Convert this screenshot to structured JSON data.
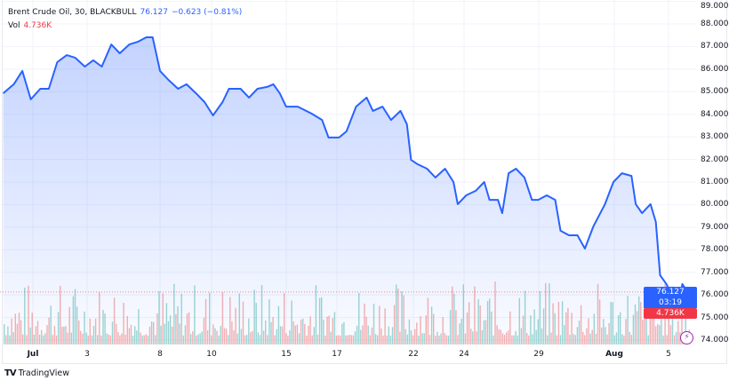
{
  "legend": {
    "symbol": "Brent Crude Oil, 30, BLACKBULL",
    "last": "76.127",
    "change": "−0.623 (−0.81%)",
    "vol_label": "Vol",
    "vol_value": "4.736K"
  },
  "price_tag": {
    "price": "76.127",
    "countdown": "03:19",
    "volume": "4.736K"
  },
  "colors": {
    "line": "#2962ff",
    "up_volume": "#26a69a",
    "down_volume": "#ef5350",
    "price_tag": "#2962ff",
    "volume_tag": "#f23645",
    "alert_icon": "#9c27b0"
  },
  "icons": {
    "alert": "lightning-icon",
    "logo": "tradingview-logo"
  },
  "footer": {
    "brand": "TradingView"
  },
  "chart_data": {
    "type": "area",
    "title": "Brent Crude Oil, 30, BLACKBULL",
    "ylim": [
      74,
      89
    ],
    "yticks": [
      "74.000",
      "75.000",
      "76.000",
      "77.000",
      "78.000",
      "79.000",
      "80.000",
      "81.000",
      "82.000",
      "83.000",
      "84.000",
      "85.000",
      "86.000",
      "87.000",
      "88.000",
      "89.000"
    ],
    "xticks": [
      "Jul",
      "3",
      "8",
      "10",
      "15",
      "17",
      "22",
      "24",
      "29",
      "Aug",
      "5"
    ],
    "grid": true,
    "series": [
      {
        "values": [
          [
            "Jun 27 20:00",
            84.93
          ],
          [
            "Jun 28 06:00",
            85.33
          ],
          [
            "Jun 28 14:00",
            85.92
          ],
          [
            "Jun 28 22:00",
            84.66
          ],
          [
            "Jul 1 07:00",
            85.13
          ],
          [
            "Jul 1 15:00",
            85.13
          ],
          [
            "Jul 1 23:00",
            86.31
          ],
          [
            "Jul 2 08:00",
            86.62
          ],
          [
            "Jul 2 16:00",
            86.5
          ],
          [
            "Jul 3 01:00",
            86.11
          ],
          [
            "Jul 3 09:00",
            86.39
          ],
          [
            "Jul 3 17:00",
            86.11
          ],
          [
            "Jul 4 02:00",
            87.09
          ],
          [
            "Jul 4 10:00",
            86.7
          ],
          [
            "Jul 4 19:00",
            87.09
          ],
          [
            "Jul 5 03:00",
            87.21
          ],
          [
            "Jul 5 11:00",
            87.41
          ],
          [
            "Jul 5 17:00",
            87.41
          ],
          [
            "Jul 8 00:00",
            85.92
          ],
          [
            "Jul 8 08:00",
            85.52
          ],
          [
            "Jul 8 17:00",
            85.13
          ],
          [
            "Jul 9 01:00",
            85.33
          ],
          [
            "Jul 9 10:00",
            84.93
          ],
          [
            "Jul 9 18:00",
            84.54
          ],
          [
            "Jul 10 02:00",
            83.95
          ],
          [
            "Jul 10 11:00",
            84.54
          ],
          [
            "Jul 10 17:00",
            85.13
          ],
          [
            "Jul 11 04:00",
            85.13
          ],
          [
            "Jul 11 12:00",
            84.74
          ],
          [
            "Jul 11 20:00",
            85.13
          ],
          [
            "Jul 12 05:00",
            85.21
          ],
          [
            "Jul 12 11:00",
            85.33
          ],
          [
            "Jul 12 17:00",
            84.93
          ],
          [
            "Jul 12 23:00",
            84.34
          ],
          [
            "Jul 15 10:00",
            84.34
          ],
          [
            "Jul 15 23:00",
            84.03
          ],
          [
            "Jul 16 09:00",
            83.75
          ],
          [
            "Jul 16 15:00",
            82.97
          ],
          [
            "Jul 17 01:00",
            82.97
          ],
          [
            "Jul 17 08:00",
            83.24
          ],
          [
            "Jul 17 17:00",
            84.34
          ],
          [
            "Jul 18 03:00",
            84.74
          ],
          [
            "Jul 18 09:00",
            84.15
          ],
          [
            "Jul 18 18:00",
            84.34
          ],
          [
            "Jul 19 02:00",
            83.75
          ],
          [
            "Jul 19 11:00",
            84.15
          ],
          [
            "Jul 19 17:00",
            83.56
          ],
          [
            "Jul 19 21:00",
            81.98
          ],
          [
            "Jul 22 03:00",
            81.79
          ],
          [
            "Jul 22 12:00",
            81.59
          ],
          [
            "Jul 22 20:00",
            81.2
          ],
          [
            "Jul 23 05:00",
            81.59
          ],
          [
            "Jul 23 13:00",
            81.0
          ],
          [
            "Jul 23 17:00",
            80.02
          ],
          [
            "Jul 24 01:00",
            80.41
          ],
          [
            "Jul 24 10:00",
            80.61
          ],
          [
            "Jul 24 18:00",
            81.0
          ],
          [
            "Jul 24 23:00",
            80.21
          ],
          [
            "Jul 25 07:00",
            80.21
          ],
          [
            "Jul 25 11:00",
            79.62
          ],
          [
            "Jul 25 17:00",
            81.39
          ],
          [
            "Jul 26 00:00",
            81.59
          ],
          [
            "Jul 26 08:00",
            81.2
          ],
          [
            "Jul 26 15:00",
            80.21
          ],
          [
            "Jul 26 21:00",
            80.21
          ],
          [
            "Jul 29 05:00",
            80.41
          ],
          [
            "Jul 29 13:00",
            80.21
          ],
          [
            "Jul 29 18:00",
            78.84
          ],
          [
            "Jul 30 02:00",
            78.64
          ],
          [
            "Jul 30 10:00",
            78.64
          ],
          [
            "Jul 30 17:00",
            78.05
          ],
          [
            "Jul 31 01:00",
            79.03
          ],
          [
            "Jul 31 12:00",
            80.02
          ],
          [
            "Jul 31 20:00",
            81.0
          ],
          [
            "Aug 1 04:00",
            81.39
          ],
          [
            "Aug 1 13:00",
            81.27
          ],
          [
            "Aug 1 17:00",
            80.02
          ],
          [
            "Aug 1 23:00",
            79.62
          ],
          [
            "Aug 2 07:00",
            80.02
          ],
          [
            "Aug 2 12:00",
            79.23
          ],
          [
            "Aug 2 16:00",
            76.87
          ],
          [
            "Aug 2 22:00",
            76.48
          ],
          [
            "Aug 5 02:00",
            76.08
          ],
          [
            "Aug 5 08:00",
            75.1
          ],
          [
            "Aug 5 13:00",
            76.48
          ],
          [
            "Aug 5 18:00",
            76.127
          ]
        ]
      }
    ]
  }
}
